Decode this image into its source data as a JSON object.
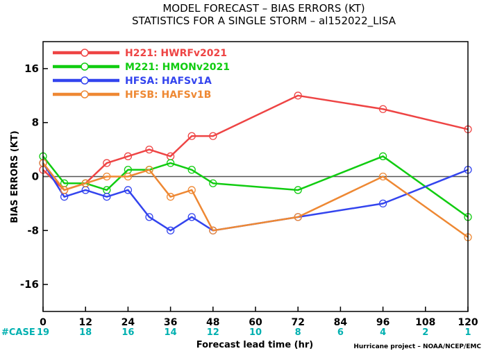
{
  "chart_data": {
    "type": "line",
    "title": "MODEL FORECAST – BIAS ERRORS (KT)",
    "subtitle": "STATISTICS FOR A SINGLE STORM – al152022_LISA",
    "xlabel": "Forecast lead time (hr)",
    "ylabel": "BIAS ERRORS (KT)",
    "xlim": [
      0,
      120
    ],
    "ylim": [
      -20,
      20
    ],
    "x_ticks": [
      0,
      12,
      24,
      36,
      48,
      60,
      72,
      84,
      96,
      108,
      120
    ],
    "y_ticks": [
      -16,
      -8,
      0,
      8,
      16
    ],
    "zero_line": true,
    "grid": false,
    "legend_position": "top-left",
    "cases": {
      "label": "#CASE",
      "values": [
        19,
        18,
        16,
        14,
        12,
        10,
        8,
        6,
        4,
        2,
        1
      ],
      "color": "#00b0b0"
    },
    "footer": "Hurricane project – NOAA/NCEP/EMC",
    "series": [
      {
        "key": "H221",
        "desc": "HWRFv2021",
        "color": "#ee4444",
        "x": [
          0,
          6,
          12,
          18,
          24,
          30,
          36,
          42,
          48,
          72,
          96,
          120
        ],
        "values": [
          1,
          -2,
          -1,
          2,
          3,
          4,
          3,
          6,
          6,
          12,
          10,
          7
        ]
      },
      {
        "key": "M221",
        "desc": "HMONv2021",
        "color": "#11cc11",
        "x": [
          0,
          6,
          12,
          18,
          24,
          30,
          36,
          42,
          48,
          72,
          96,
          120
        ],
        "values": [
          3,
          -1,
          -1,
          -2,
          1,
          1,
          2,
          1,
          -1,
          -2,
          3,
          -6
        ]
      },
      {
        "key": "HFSA",
        "desc": "HAFSv1A",
        "color": "#3344ee",
        "x": [
          0,
          6,
          12,
          18,
          24,
          30,
          36,
          42,
          48,
          72,
          96,
          120
        ],
        "values": [
          2,
          -3,
          -2,
          -3,
          -2,
          -6,
          -8,
          -6,
          -8,
          -6,
          -4,
          1
        ]
      },
      {
        "key": "HFSB",
        "desc": "HAFSv1B",
        "color": "#ee8833",
        "x": [
          0,
          6,
          12,
          18,
          24,
          30,
          36,
          42,
          48,
          72,
          96,
          120
        ],
        "values": [
          2,
          -2,
          -1,
          0,
          0,
          1,
          -3,
          -2,
          -8,
          -6,
          0,
          -9
        ]
      }
    ]
  }
}
